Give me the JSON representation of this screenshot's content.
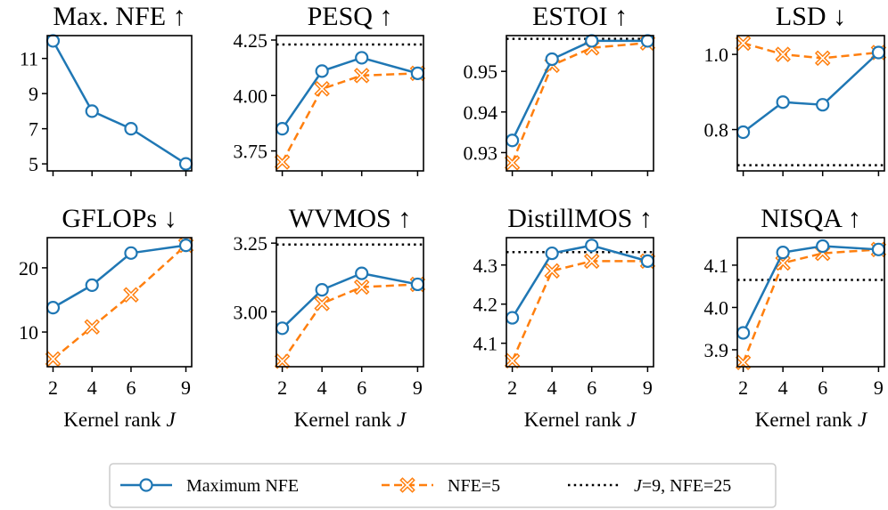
{
  "colors": {
    "max_nfe": "#1f77b4",
    "nfe5": "#ff7f0e",
    "reference": "#000000",
    "axes": "#000000",
    "background": "#ffffff"
  },
  "legend": {
    "entries": [
      {
        "key": "max_nfe",
        "label": "Maximum NFE",
        "style": "solid-circle"
      },
      {
        "key": "nfe5",
        "label": "NFE=5",
        "style": "dashed-x"
      },
      {
        "key": "ref",
        "label_italic": "J",
        "label_rest": "=9, NFE=25",
        "style": "dotted"
      }
    ],
    "placement": "bottom-center"
  },
  "chart_data": [
    {
      "type": "line",
      "title": "Max. NFE ↑",
      "xlabel": "",
      "x": [
        2,
        4,
        6,
        9
      ],
      "xticks": [
        "2",
        "4",
        "6",
        "9"
      ],
      "ylim": [
        4.6,
        12.3
      ],
      "yticks": [
        5,
        7,
        9,
        11
      ],
      "ytick_labels": [
        "5",
        "7",
        "9",
        "11"
      ],
      "series": [
        {
          "name": "Maximum NFE",
          "key": "max_nfe",
          "values": [
            12,
            8,
            7,
            5
          ]
        }
      ],
      "reference": null
    },
    {
      "type": "line",
      "title": "PESQ ↑",
      "xlabel": "",
      "x": [
        2,
        4,
        6,
        9
      ],
      "xticks": [
        "2",
        "4",
        "6",
        "9"
      ],
      "ylim": [
        3.66,
        4.27
      ],
      "yticks": [
        3.75,
        4.0,
        4.25
      ],
      "ytick_labels": [
        "3.75",
        "4.00",
        "4.25"
      ],
      "series": [
        {
          "name": "Maximum NFE",
          "key": "max_nfe",
          "values": [
            3.85,
            4.11,
            4.17,
            4.1
          ]
        },
        {
          "name": "NFE=5",
          "key": "nfe5",
          "values": [
            3.7,
            4.03,
            4.09,
            4.1
          ]
        }
      ],
      "reference": 4.23
    },
    {
      "type": "line",
      "title": "ESTOI ↑",
      "xlabel": "",
      "x": [
        2,
        4,
        6,
        9
      ],
      "xticks": [
        "2",
        "4",
        "6",
        "9"
      ],
      "ylim": [
        0.9255,
        0.9588
      ],
      "yticks": [
        0.93,
        0.94,
        0.95
      ],
      "ytick_labels": [
        "0.93",
        "0.94",
        "0.95"
      ],
      "series": [
        {
          "name": "Maximum NFE",
          "key": "max_nfe",
          "values": [
            0.933,
            0.953,
            0.9575,
            0.9575
          ]
        },
        {
          "name": "NFE=5",
          "key": "nfe5",
          "values": [
            0.9275,
            0.9515,
            0.9558,
            0.957
          ]
        }
      ],
      "reference": 0.958
    },
    {
      "type": "line",
      "title": "LSD ↓",
      "xlabel": "",
      "x": [
        2,
        4,
        6,
        9
      ],
      "xticks": [
        "2",
        "4",
        "6",
        "9"
      ],
      "ylim": [
        0.69,
        1.05
      ],
      "yticks": [
        0.8,
        1.0
      ],
      "ytick_labels": [
        "0.8",
        "1.0"
      ],
      "series": [
        {
          "name": "Maximum NFE",
          "key": "max_nfe",
          "values": [
            0.793,
            0.873,
            0.866,
            1.005
          ]
        },
        {
          "name": "NFE=5",
          "key": "nfe5",
          "values": [
            1.03,
            1.0,
            0.99,
            1.005
          ]
        }
      ],
      "reference": 0.705
    },
    {
      "type": "line",
      "title": "GFLOPs ↓",
      "xlabel": "Kernel rank",
      "xlabel_var": "J",
      "x": [
        2,
        4,
        6,
        9
      ],
      "xticks": [
        "2",
        "4",
        "6",
        "9"
      ],
      "ylim": [
        4.6,
        24.7
      ],
      "yticks": [
        10,
        20
      ],
      "ytick_labels": [
        "10",
        "20"
      ],
      "series": [
        {
          "name": "Maximum NFE",
          "key": "max_nfe",
          "values": [
            13.8,
            17.3,
            22.3,
            23.5
          ]
        },
        {
          "name": "NFE=5",
          "key": "nfe5",
          "values": [
            5.8,
            10.8,
            15.8,
            23.5
          ]
        }
      ],
      "reference": null
    },
    {
      "type": "line",
      "title": "WVMOS ↑",
      "xlabel": "Kernel rank",
      "xlabel_var": "J",
      "x": [
        2,
        4,
        6,
        9
      ],
      "xticks": [
        "2",
        "4",
        "6",
        "9"
      ],
      "ylim": [
        2.8,
        3.27
      ],
      "yticks": [
        3.0,
        3.25
      ],
      "ytick_labels": [
        "3.00",
        "3.25"
      ],
      "series": [
        {
          "name": "Maximum NFE",
          "key": "max_nfe",
          "values": [
            2.94,
            3.08,
            3.14,
            3.1
          ]
        },
        {
          "name": "NFE=5",
          "key": "nfe5",
          "values": [
            2.82,
            3.03,
            3.09,
            3.1
          ]
        }
      ],
      "reference": 3.245
    },
    {
      "type": "line",
      "title": "DistillMOS ↑",
      "xlabel": "Kernel rank",
      "xlabel_var": "J",
      "x": [
        2,
        4,
        6,
        9
      ],
      "xticks": [
        "2",
        "4",
        "6",
        "9"
      ],
      "ylim": [
        4.04,
        4.37
      ],
      "yticks": [
        4.1,
        4.2,
        4.3
      ],
      "ytick_labels": [
        "4.1",
        "4.2",
        "4.3"
      ],
      "series": [
        {
          "name": "Maximum NFE",
          "key": "max_nfe",
          "values": [
            4.165,
            4.33,
            4.35,
            4.31
          ]
        },
        {
          "name": "NFE=5",
          "key": "nfe5",
          "values": [
            4.055,
            4.285,
            4.31,
            4.31
          ]
        }
      ],
      "reference": 4.333
    },
    {
      "type": "line",
      "title": "NISQA ↑",
      "xlabel": "Kernel rank",
      "xlabel_var": "J",
      "x": [
        2,
        4,
        6,
        9
      ],
      "xticks": [
        "2",
        "4",
        "6",
        "9"
      ],
      "ylim": [
        3.86,
        4.165
      ],
      "yticks": [
        3.9,
        4.0,
        4.1
      ],
      "ytick_labels": [
        "3.9",
        "4.0",
        "4.1"
      ],
      "series": [
        {
          "name": "Maximum NFE",
          "key": "max_nfe",
          "values": [
            3.94,
            4.13,
            4.145,
            4.137
          ]
        },
        {
          "name": "NFE=5",
          "key": "nfe5",
          "values": [
            3.87,
            4.105,
            4.128,
            4.137
          ]
        }
      ],
      "reference": 4.065
    }
  ]
}
